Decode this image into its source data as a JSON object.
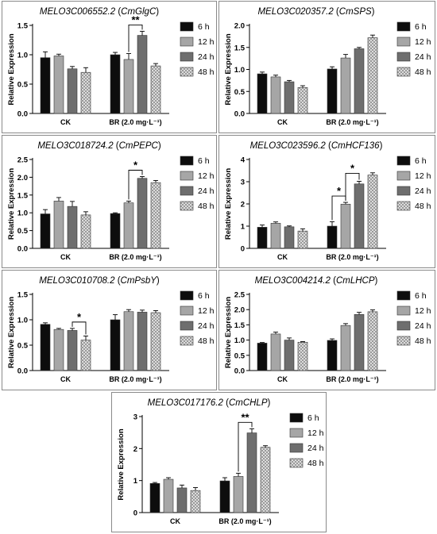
{
  "legend_labels": [
    "6 h",
    "12 h",
    "24 h",
    "48 h"
  ],
  "series_colors": [
    "#0d0d0d",
    "#a6a6a6",
    "#6e6e6e",
    "#dcdcdc"
  ],
  "chart_data": [
    {
      "type": "bar",
      "gene": "MELO3C006552.2",
      "symbol": "CmGlgC",
      "ylabel": "Relative Expression",
      "categories": [
        "CK",
        "BR (2.0 mg·L⁻¹)"
      ],
      "ylim": [
        0,
        1.5
      ],
      "yticks": [
        "0.0",
        "0.5",
        "1.0",
        "1.5"
      ],
      "series": [
        {
          "name": "6 h",
          "values": [
            0.95,
            1.0
          ],
          "errors": [
            0.1,
            0.04
          ]
        },
        {
          "name": "12 h",
          "values": [
            0.98,
            0.92
          ],
          "errors": [
            0.03,
            0.1
          ]
        },
        {
          "name": "24 h",
          "values": [
            0.76,
            1.33
          ],
          "errors": [
            0.04,
            0.07
          ]
        },
        {
          "name": "48 h",
          "values": [
            0.7,
            0.81
          ],
          "errors": [
            0.08,
            0.04
          ]
        }
      ],
      "significance": [
        {
          "group": 1,
          "from": 1,
          "to": 2,
          "label": "**"
        }
      ]
    },
    {
      "type": "bar",
      "gene": "MELO3C020357.2",
      "symbol": "CmSPS",
      "ylabel": "Relative Expression",
      "categories": [
        "CK",
        "BR (2.0 mg·L⁻¹)"
      ],
      "ylim": [
        0,
        2.0
      ],
      "yticks": [
        "0.0",
        "0.5",
        "1.0",
        "1.5",
        "2.0"
      ],
      "series": [
        {
          "name": "6 h",
          "values": [
            0.9,
            1.01
          ],
          "errors": [
            0.04,
            0.05
          ]
        },
        {
          "name": "12 h",
          "values": [
            0.83,
            1.26
          ],
          "errors": [
            0.04,
            0.08
          ]
        },
        {
          "name": "24 h",
          "values": [
            0.72,
            1.47
          ],
          "errors": [
            0.03,
            0.03
          ]
        },
        {
          "name": "48 h",
          "values": [
            0.59,
            1.72
          ],
          "errors": [
            0.04,
            0.06
          ]
        }
      ],
      "significance": []
    },
    {
      "type": "bar",
      "gene": "MELO3C018724.2",
      "symbol": "CmPEPC",
      "ylabel": "Relative Expression",
      "categories": [
        "CK",
        "BR (2.0 mg·L⁻¹)"
      ],
      "ylim": [
        0,
        2.5
      ],
      "yticks": [
        "0.0",
        "0.5",
        "1.0",
        "1.5",
        "2.0",
        "2.5"
      ],
      "series": [
        {
          "name": "6 h",
          "values": [
            0.97,
            0.98
          ],
          "errors": [
            0.12,
            0.02
          ]
        },
        {
          "name": "12 h",
          "values": [
            1.33,
            1.28
          ],
          "errors": [
            0.1,
            0.05
          ]
        },
        {
          "name": "24 h",
          "values": [
            1.18,
            1.97
          ],
          "errors": [
            0.14,
            0.05
          ]
        },
        {
          "name": "48 h",
          "values": [
            0.94,
            1.85
          ],
          "errors": [
            0.09,
            0.06
          ]
        }
      ],
      "significance": [
        {
          "group": 1,
          "from": 1,
          "to": 2,
          "label": "*"
        }
      ]
    },
    {
      "type": "bar",
      "gene": "MELO3C023596.2",
      "symbol": "CmHCF136",
      "ylabel": "Relative Expression",
      "categories": [
        "CK",
        "BR (2.0 mg·L⁻¹)"
      ],
      "ylim": [
        0,
        4
      ],
      "yticks": [
        "0",
        "1",
        "2",
        "3",
        "4"
      ],
      "series": [
        {
          "name": "6 h",
          "values": [
            0.95,
            1.0
          ],
          "errors": [
            0.1,
            0.2
          ]
        },
        {
          "name": "12 h",
          "values": [
            1.13,
            1.99
          ],
          "errors": [
            0.06,
            0.08
          ]
        },
        {
          "name": "24 h",
          "values": [
            0.97,
            2.9
          ],
          "errors": [
            0.04,
            0.12
          ]
        },
        {
          "name": "48 h",
          "values": [
            0.78,
            3.3
          ],
          "errors": [
            0.1,
            0.1
          ]
        }
      ],
      "significance": [
        {
          "group": 1,
          "from": 0,
          "to": 1,
          "label": "*"
        },
        {
          "group": 1,
          "from": 1,
          "to": 2,
          "label": "*"
        }
      ]
    },
    {
      "type": "bar",
      "gene": "MELO3C010708.2",
      "symbol": "CmPsbY",
      "ylabel": "Relative Expression",
      "categories": [
        "CK",
        "BR (2.0 mg·L⁻¹)"
      ],
      "ylim": [
        0,
        1.5
      ],
      "yticks": [
        "0.0",
        "0.5",
        "1.0",
        "1.5"
      ],
      "series": [
        {
          "name": "6 h",
          "values": [
            0.91,
            1.0
          ],
          "errors": [
            0.03,
            0.1
          ]
        },
        {
          "name": "12 h",
          "values": [
            0.81,
            1.16
          ],
          "errors": [
            0.02,
            0.04
          ]
        },
        {
          "name": "24 h",
          "values": [
            0.79,
            1.15
          ],
          "errors": [
            0.04,
            0.04
          ]
        },
        {
          "name": "48 h",
          "values": [
            0.6,
            1.14
          ],
          "errors": [
            0.08,
            0.04
          ]
        }
      ],
      "significance": [
        {
          "group": 0,
          "from": 2,
          "to": 3,
          "label": "*"
        }
      ]
    },
    {
      "type": "bar",
      "gene": "MELO3C004214.2",
      "symbol": "CmLHCP",
      "ylabel": "Relative Expression",
      "categories": [
        "CK",
        "BR (2.0 mg·L⁻¹)"
      ],
      "ylim": [
        0,
        2.5
      ],
      "yticks": [
        "0.0",
        "0.5",
        "1.0",
        "1.5",
        "2.0",
        "2.5"
      ],
      "series": [
        {
          "name": "6 h",
          "values": [
            0.9,
            0.99
          ],
          "errors": [
            0.02,
            0.05
          ]
        },
        {
          "name": "12 h",
          "values": [
            1.2,
            1.48
          ],
          "errors": [
            0.06,
            0.06
          ]
        },
        {
          "name": "24 h",
          "values": [
            1.0,
            1.84
          ],
          "errors": [
            0.07,
            0.07
          ]
        },
        {
          "name": "48 h",
          "values": [
            0.93,
            1.93
          ],
          "errors": [
            0.02,
            0.06
          ]
        }
      ],
      "significance": []
    },
    {
      "type": "bar",
      "gene": "MELO3C017176.2",
      "symbol": "CmCHLP",
      "ylabel": "Relative Expression",
      "categories": [
        "CK",
        "BR (2.0 mg·L⁻¹)"
      ],
      "ylim": [
        0,
        3
      ],
      "yticks": [
        "0",
        "1",
        "2",
        "3"
      ],
      "series": [
        {
          "name": "6 h",
          "values": [
            0.91,
            0.99
          ],
          "errors": [
            0.03,
            0.1
          ]
        },
        {
          "name": "12 h",
          "values": [
            1.04,
            1.13
          ],
          "errors": [
            0.05,
            0.1
          ]
        },
        {
          "name": "24 h",
          "values": [
            0.77,
            2.49
          ],
          "errors": [
            0.09,
            0.13
          ]
        },
        {
          "name": "48 h",
          "values": [
            0.69,
            2.04
          ],
          "errors": [
            0.09,
            0.05
          ]
        }
      ],
      "significance": [
        {
          "group": 1,
          "from": 1,
          "to": 2,
          "label": "**"
        }
      ]
    }
  ]
}
